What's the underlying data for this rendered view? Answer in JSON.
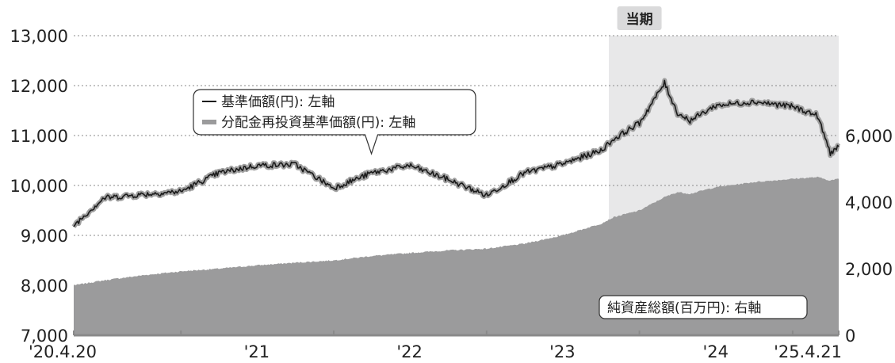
{
  "chart_data": {
    "type": "line",
    "period_label": "当期",
    "x_ticks": [
      "'20.4.20",
      "'21",
      "'22",
      "'23",
      "'24",
      "'25.4.21"
    ],
    "left_axis": {
      "ticks": [
        "13,000",
        "12,000",
        "11,000",
        "10,000",
        "9,000",
        "8,000",
        "7,000"
      ],
      "ylim": [
        7000,
        13000
      ]
    },
    "right_axis": {
      "ticks": [
        "6,000",
        "4,000",
        "2,000",
        "0"
      ],
      "ylim": [
        0,
        9000
      ]
    },
    "grid": true,
    "legend_nav": {
      "line1": "基準価額(円): 左軸",
      "line2": "分配金再投資基準価額(円): 左軸"
    },
    "legend_assets": "純資産総額(百万円): 右軸",
    "x": [
      "2020-04-20",
      "2020-07-01",
      "2020-10-01",
      "2021-01-01",
      "2021-04-01",
      "2021-07-01",
      "2021-10-01",
      "2022-01-01",
      "2022-04-01",
      "2022-07-01",
      "2022-10-01",
      "2023-01-01",
      "2023-04-01",
      "2023-07-01",
      "2023-10-01",
      "2023-11-01",
      "2024-01-01",
      "2024-03-01",
      "2024-04-01",
      "2024-05-01",
      "2024-07-01",
      "2024-10-01",
      "2025-01-01",
      "2025-03-01",
      "2025-04-01",
      "2025-04-21"
    ],
    "series": [
      {
        "name": "基準価額",
        "axis": "left",
        "values": [
          9200,
          9750,
          9820,
          9880,
          10250,
          10400,
          10420,
          9950,
          10250,
          10400,
          10120,
          9800,
          10250,
          10430,
          10700,
          10930,
          11250,
          12050,
          11450,
          11300,
          11600,
          11680,
          11580,
          11400,
          10650,
          10780
        ]
      },
      {
        "name": "分配金再投資基準価額",
        "axis": "left",
        "values": [
          9200,
          9750,
          9820,
          9880,
          10250,
          10400,
          10420,
          9950,
          10250,
          10400,
          10120,
          9800,
          10250,
          10430,
          10700,
          10930,
          11250,
          12050,
          11450,
          11300,
          11600,
          11680,
          11580,
          11400,
          10650,
          10780
        ]
      },
      {
        "name": "純資産総額",
        "axis": "right",
        "values": [
          1500,
          1650,
          1800,
          1920,
          2000,
          2100,
          2180,
          2250,
          2380,
          2470,
          2550,
          2600,
          2750,
          3000,
          3350,
          3550,
          3750,
          4150,
          4300,
          4250,
          4450,
          4600,
          4700,
          4750,
          4650,
          4700
        ]
      }
    ]
  }
}
